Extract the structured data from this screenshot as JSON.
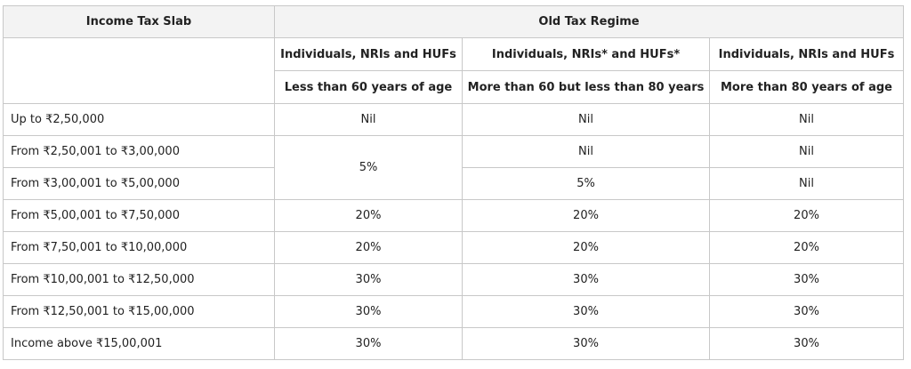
{
  "table": {
    "header": {
      "slab_label": "Income Tax Slab",
      "regime_label": "Old Tax Regime"
    },
    "categories": [
      {
        "group": "Individuals, NRIs and HUFs",
        "age": "Less than 60 years of age"
      },
      {
        "group": "Individuals, NRIs* and HUFs*",
        "age": "More than 60 but less than 80 years"
      },
      {
        "group": "Individuals, NRIs and HUFs",
        "age": "More than 80 years of age"
      }
    ],
    "rows": [
      {
        "slab": "Up to ₹2,50,000",
        "below60": "Nil",
        "age60to80": "Nil",
        "above80": "Nil"
      },
      {
        "slab": "From ₹2,50,001 to ₹3,00,000",
        "below60": "5%",
        "age60to80": "Nil",
        "above80": "Nil"
      },
      {
        "slab": "From ₹3,00,001 to ₹5,00,000",
        "age60to80": "5%",
        "above80": "Nil"
      },
      {
        "slab": "From ₹5,00,001 to ₹7,50,000",
        "below60": "20%",
        "age60to80": "20%",
        "above80": "20%"
      },
      {
        "slab": "From ₹7,50,001 to ₹10,00,000",
        "below60": "20%",
        "age60to80": "20%",
        "above80": "20%"
      },
      {
        "slab": "From ₹10,00,001 to ₹12,50,000",
        "below60": "30%",
        "age60to80": "30%",
        "above80": "30%"
      },
      {
        "slab": "From ₹12,50,001 to ₹15,00,000",
        "below60": "30%",
        "age60to80": "30%",
        "above80": "30%"
      },
      {
        "slab": "Income above ₹15,00,001",
        "below60": "30%",
        "age60to80": "30%",
        "above80": "30%"
      }
    ]
  }
}
